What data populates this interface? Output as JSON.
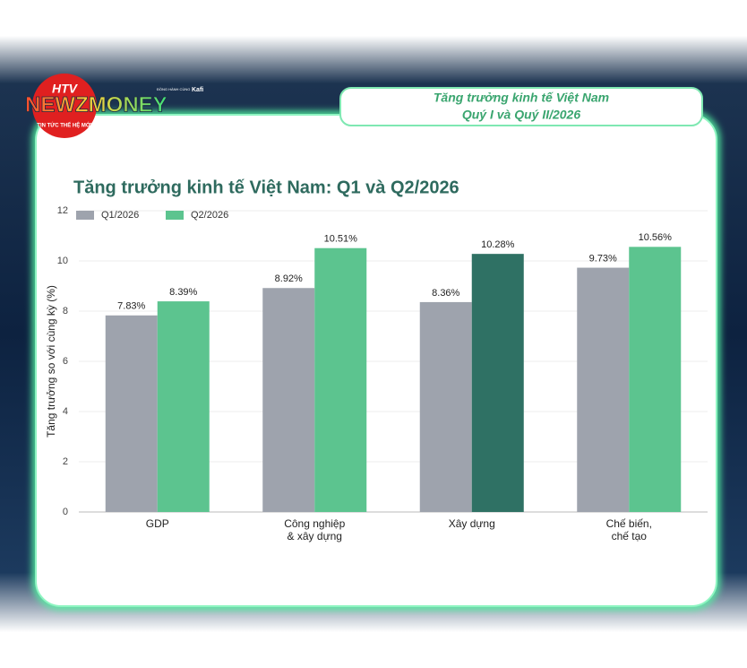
{
  "header": {
    "logo": "HTV",
    "brand": "NEWZMONEY",
    "slogan": "TIN TỨC THẾ HỆ MỚI",
    "partner": "ĐỒNG HÀNH CÙNG",
    "partner_name": "Kafi",
    "caption_line1": "Tăng trưởng kinh tế Việt Nam",
    "caption_line2": "Quý I và Quý II/2026"
  },
  "chart_data": {
    "type": "bar",
    "title": "Tăng trưởng kinh tế Việt Nam: Q1 và Q2/2026",
    "y_label": "Tăng trưởng so với cùng kỳ (%)",
    "categories": [
      "GDP",
      "Công nghiệp & xây dựng",
      "Xây dựng",
      "Chế biến, chế tạo"
    ],
    "series": [
      {
        "name": "Q1/2026",
        "color": "#9ea3ad",
        "values": [
          7.83,
          8.92,
          8.36,
          9.73
        ],
        "value_labels": [
          "7.83%",
          "8.92%",
          "8.36%",
          "9.73%"
        ]
      },
      {
        "name": "Q2/2026",
        "color": "#5cc48f",
        "colors": [
          "#5cc48f",
          "#5cc48f",
          "#2f7164",
          "#5cc48f"
        ],
        "values": [
          8.39,
          10.51,
          10.28,
          10.56
        ],
        "value_labels": [
          "8.39%",
          "10.51%",
          "10.28%",
          "10.56%"
        ]
      }
    ],
    "ylim": [
      0,
      12
    ],
    "yticks": [
      0,
      2,
      4,
      6,
      8,
      10,
      12
    ],
    "grid": true,
    "legend": "top-left"
  }
}
